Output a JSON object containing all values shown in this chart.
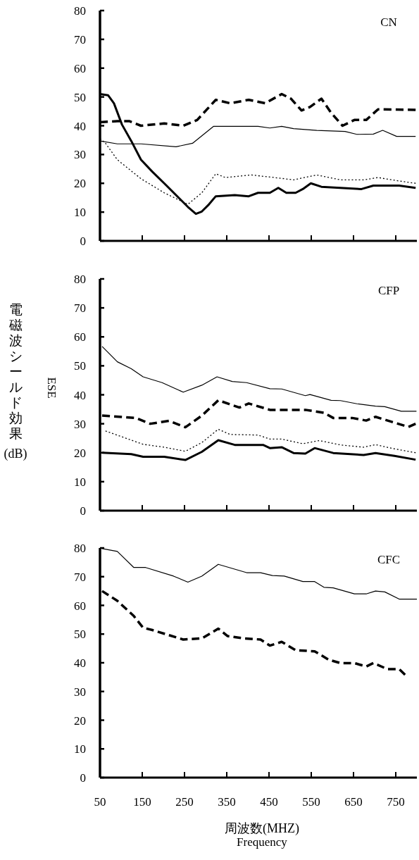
{
  "chart_data": [
    {
      "type": "line",
      "title": "CN",
      "xlim": [
        50,
        800
      ],
      "ylim": [
        0,
        80
      ],
      "xticks": [
        50,
        150,
        250,
        350,
        450,
        550,
        650,
        750
      ],
      "yticks": [
        0,
        10,
        20,
        30,
        40,
        50,
        60,
        70,
        80
      ],
      "tick_labels": "y",
      "grid": false,
      "marker": "none",
      "series": [
        {
          "color": "#000000",
          "line_style": "solid",
          "x": [
            50,
            91,
            147,
            230,
            269,
            319,
            424,
            452,
            480,
            508,
            563,
            630,
            658,
            697,
            719,
            752,
            797
          ],
          "values": [
            34.7,
            33.7,
            33.7,
            32.7,
            33.9,
            39.8,
            39.8,
            39.2,
            39.8,
            39,
            38.4,
            38,
            37,
            37.1,
            38.4,
            36.3,
            36.3
          ]
        },
        {
          "color": "#000000",
          "line_style": "solid",
          "x": [
            50,
            69,
            83,
            102,
            124,
            147,
            174,
            202,
            230,
            258,
            277,
            291,
            308,
            324,
            369,
            402,
            424,
            452,
            472,
            491,
            513,
            530,
            549,
            574,
            619,
            669,
            697,
            758,
            797
          ],
          "values": [
            51,
            50.6,
            47.8,
            40.4,
            34.7,
            28.2,
            24,
            20,
            15.9,
            11.8,
            9.4,
            10.2,
            12.7,
            15.5,
            15.9,
            15.5,
            16.7,
            16.7,
            18.4,
            16.7,
            16.7,
            18,
            20,
            18.8,
            18.4,
            18,
            19.2,
            19.2,
            18.4
          ]
        },
        {
          "color": "#000000",
          "line_style": "dashed",
          "x": [
            50,
            91,
            119,
            147,
            202,
            247,
            280,
            324,
            358,
            402,
            441,
            480,
            502,
            527,
            547,
            574,
            597,
            624,
            652,
            680,
            708,
            797
          ],
          "values": [
            41.2,
            41.6,
            41.6,
            40,
            40.8,
            40,
            42,
            49,
            47.8,
            49,
            47.8,
            51,
            49.4,
            45.3,
            46.5,
            49.4,
            44.5,
            40,
            42,
            42,
            45.7,
            45.5
          ]
        },
        {
          "color": "#000000",
          "line_style": "dotted",
          "x": [
            50,
            63,
            91,
            147,
            202,
            258,
            291,
            324,
            347,
            408,
            463,
            508,
            563,
            619,
            674,
            708,
            758,
            797
          ],
          "values": [
            35.5,
            33.9,
            28.2,
            21.6,
            16.7,
            12.7,
            16.7,
            23.3,
            22,
            22.9,
            22,
            21.2,
            22.9,
            21.2,
            21.2,
            22,
            20.8,
            20
          ]
        }
      ]
    },
    {
      "type": "line",
      "title": "CFP",
      "ylabel": "電磁波シールド効果(dB)",
      "annotations": [
        "ESE"
      ],
      "xlim": [
        50,
        800
      ],
      "ylim": [
        0,
        80
      ],
      "xticks": [
        50,
        150,
        250,
        350,
        450,
        550,
        650,
        750
      ],
      "yticks": [
        0,
        10,
        20,
        30,
        40,
        50,
        60,
        70,
        80
      ],
      "tick_labels": "y",
      "grid": false,
      "marker": "none",
      "series": [
        {
          "color": "#000000",
          "line_style": "solid",
          "x": [
            55,
            91,
            124,
            152,
            197,
            247,
            291,
            327,
            363,
            397,
            452,
            480,
            536,
            547,
            597,
            619,
            658,
            702,
            724,
            763,
            799
          ],
          "values": [
            56.7,
            51.4,
            49,
            46.2,
            44.2,
            40.9,
            43.3,
            46.2,
            44.6,
            44.2,
            42.1,
            42,
            39.7,
            40.1,
            38.1,
            38,
            36.9,
            36.1,
            35.9,
            34.3,
            34.3
          ]
        },
        {
          "color": "#000000",
          "line_style": "solid",
          "x": [
            55,
            124,
            152,
            202,
            252,
            291,
            330,
            369,
            436,
            452,
            480,
            508,
            536,
            558,
            602,
            674,
            702,
            747,
            797
          ],
          "values": [
            20,
            19.5,
            18.6,
            18.6,
            17.5,
            20.3,
            24.3,
            22.7,
            22.7,
            21.6,
            21.9,
            19.9,
            19.7,
            21.6,
            19.9,
            19.2,
            19.9,
            18.9,
            17.6
          ]
        },
        {
          "color": "#000000",
          "line_style": "dashed",
          "x": [
            55,
            135,
            169,
            213,
            252,
            291,
            330,
            380,
            402,
            452,
            536,
            580,
            602,
            647,
            680,
            702,
            780,
            797
          ],
          "values": [
            32.8,
            32,
            30,
            31,
            28.8,
            32.8,
            38.1,
            35.6,
            37,
            34.8,
            34.8,
            33.8,
            32,
            32,
            31.1,
            32.4,
            28.9,
            30
          ]
        },
        {
          "color": "#000000",
          "line_style": "dotted",
          "x": [
            63,
            152,
            202,
            252,
            291,
            330,
            358,
            424,
            452,
            480,
            530,
            569,
            619,
            674,
            702,
            741,
            797
          ],
          "values": [
            27.5,
            22.9,
            21.9,
            20.5,
            23.5,
            28.1,
            26.3,
            26.1,
            24.7,
            24.7,
            23.1,
            24.2,
            22.7,
            21.9,
            22.8,
            21.5,
            20
          ]
        }
      ]
    },
    {
      "type": "line",
      "title": "CFC",
      "xlabel": "周波数(MHZ)\nFrequency",
      "xlim": [
        50,
        800
      ],
      "ylim": [
        0,
        80
      ],
      "xticks": [
        50,
        150,
        250,
        350,
        450,
        550,
        650,
        750
      ],
      "yticks": [
        0,
        10,
        20,
        30,
        40,
        50,
        60,
        70,
        80
      ],
      "grid": false,
      "marker": "none",
      "series": [
        {
          "color": "#000000",
          "line_style": "solid",
          "x": [
            55,
            91,
            130,
            158,
            224,
            258,
            291,
            330,
            397,
            430,
            458,
            486,
            530,
            558,
            580,
            602,
            652,
            680,
            702,
            724,
            758,
            800
          ],
          "values": [
            79.8,
            78.8,
            73.2,
            73.2,
            70.2,
            68.1,
            70.2,
            74.3,
            71.4,
            71.4,
            70.4,
            70.2,
            68.3,
            68.3,
            66.3,
            66.1,
            64,
            64,
            65,
            64.7,
            62.2,
            62.2
          ]
        },
        {
          "color": "#000000",
          "line_style": "dashed",
          "x": [
            55,
            91,
            130,
            152,
            174,
            247,
            291,
            330,
            352,
            391,
            430,
            452,
            480,
            513,
            558,
            591,
            619,
            652,
            680,
            697,
            730,
            758,
            772
          ],
          "values": [
            65,
            61.6,
            56.3,
            52.2,
            51.4,
            48.1,
            48.5,
            51.9,
            49.3,
            48.5,
            48.1,
            46,
            47.3,
            44.4,
            44,
            41.1,
            39.9,
            39.9,
            38.7,
            39.9,
            37.8,
            37.8,
            35.8
          ]
        }
      ]
    }
  ]
}
